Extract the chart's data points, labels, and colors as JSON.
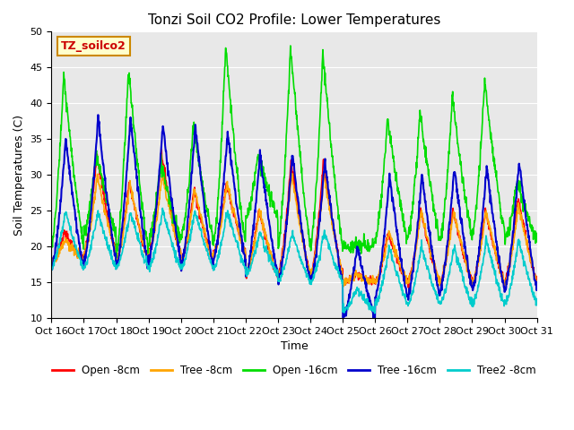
{
  "title": "Tonzi Soil CO2 Profile: Lower Temperatures",
  "xlabel": "Time",
  "ylabel": "Soil Temperatures (C)",
  "watermark": "TZ_soilco2",
  "ylim": [
    10,
    50
  ],
  "xlim": [
    0,
    15
  ],
  "xtick_labels": [
    "Oct 16",
    "Oct 17",
    "Oct 18",
    "Oct 19",
    "Oct 20",
    "Oct 21",
    "Oct 22",
    "Oct 23",
    "Oct 24",
    "Oct 25",
    "Oct 26",
    "Oct 27",
    "Oct 28",
    "Oct 29",
    "Oct 30",
    "Oct 31"
  ],
  "series": {
    "Open -8cm": {
      "color": "#ff0000",
      "lw": 1.2
    },
    "Tree -8cm": {
      "color": "#ffa500",
      "lw": 1.2
    },
    "Open -16cm": {
      "color": "#00dd00",
      "lw": 1.2
    },
    "Tree -16cm": {
      "color": "#0000cc",
      "lw": 1.5
    },
    "Tree2 -8cm": {
      "color": "#00cccc",
      "lw": 1.2
    }
  },
  "plot_bg": "#e8e8e8",
  "title_fontsize": 11,
  "label_fontsize": 9,
  "tick_fontsize": 8
}
